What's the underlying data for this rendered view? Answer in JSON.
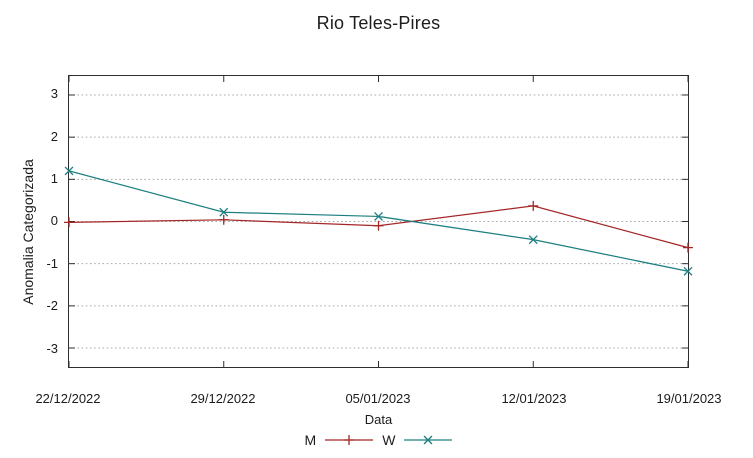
{
  "chart_data": {
    "type": "line",
    "title": "Rio Teles-Pires",
    "xlabel": "Data",
    "ylabel": "Anomalia Categorizada",
    "categories": [
      "22/12/2022",
      "29/12/2022",
      "05/01/2023",
      "12/01/2023",
      "19/01/2023"
    ],
    "series": [
      {
        "name": "M",
        "marker": "plus",
        "color": "#a52626",
        "values": [
          -0.02,
          0.04,
          -0.1,
          0.37,
          -0.62
        ]
      },
      {
        "name": "W",
        "marker": "cross",
        "color": "#1e7f80",
        "values": [
          1.2,
          0.22,
          0.12,
          -0.43,
          -1.18
        ]
      }
    ],
    "y_ticks": [
      3,
      2,
      1,
      0,
      -1,
      -2,
      -3
    ],
    "ylim": [
      -3.45,
      3.45
    ],
    "grid": "horizontal-dotted",
    "legend_position": "bottom-center",
    "colors": {
      "axis": "#2e2e2e",
      "grid": "#a8a8a8",
      "text": "#1c1c1c"
    }
  }
}
